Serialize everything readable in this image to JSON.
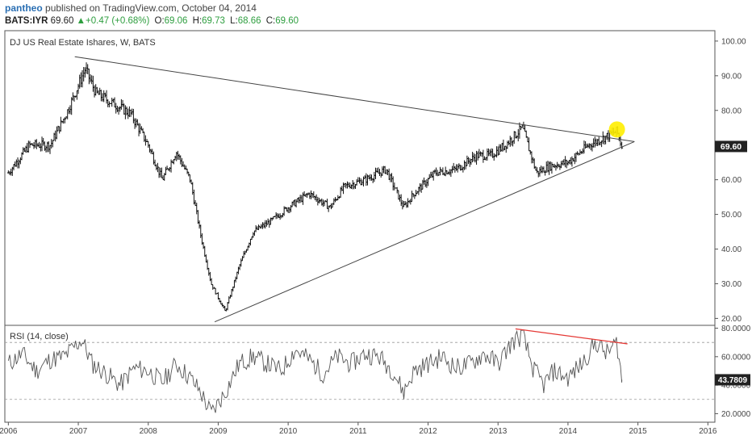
{
  "header": {
    "author": "pantheo",
    "published_text": "published on TradingView.com, October 04, 2014",
    "symbol": "BATS:IYR",
    "last": "69.60",
    "up_arrow": "▲",
    "change": "+0.47 (+0.68%)",
    "open_label": "O:",
    "open": "69.06",
    "high_label": "H:",
    "high": "69.73",
    "low_label": "L:",
    "low": "68.66",
    "close_label": "C:",
    "close": "69.60"
  },
  "chart_data": {
    "type": "line",
    "title": "DJ US Real Estate Ishares, W, BATS",
    "x_ticks": [
      "2006",
      "2007",
      "2008",
      "2009",
      "2010",
      "2011",
      "2012",
      "2013",
      "2014",
      "2015",
      "2016"
    ],
    "price_panel": {
      "series_type": "ohlc-bars-weekly",
      "y_ticks": [
        "20.00",
        "30.00",
        "40.00",
        "50.00",
        "60.00",
        "70.00",
        "80.00",
        "90.00",
        "100.00"
      ],
      "ylim": [
        18,
        103
      ],
      "last_price_label": "69.60",
      "last_price": 69.6,
      "x": [
        2006.0,
        2006.3,
        2006.6,
        2006.85,
        2007.1,
        2007.25,
        2007.5,
        2007.75,
        2008.0,
        2008.2,
        2008.4,
        2008.6,
        2008.75,
        2008.9,
        2009.1,
        2009.3,
        2009.5,
        2009.75,
        2010.0,
        2010.3,
        2010.6,
        2010.8,
        2011.1,
        2011.4,
        2011.65,
        2011.8,
        2012.1,
        2012.4,
        2012.7,
        2012.9,
        2013.1,
        2013.35,
        2013.55,
        2013.75,
        2014.0,
        2014.3,
        2014.5,
        2014.7,
        2014.77
      ],
      "close": [
        62,
        70,
        70,
        80,
        92,
        85,
        82,
        79,
        70,
        60,
        68,
        60,
        44,
        30,
        22,
        35,
        45,
        48,
        52,
        56,
        52,
        58,
        60,
        63,
        52,
        56,
        62,
        63,
        67,
        67,
        70,
        75,
        62,
        64,
        65,
        70,
        72,
        74,
        69.6
      ],
      "trendlines": [
        {
          "x": [
            2006.95,
            2014.95
          ],
          "y": [
            95.5,
            71
          ]
        },
        {
          "x": [
            2008.95,
            2014.95
          ],
          "y": [
            19,
            71
          ]
        }
      ],
      "highlight_marker": {
        "x": 2014.7,
        "y": 74.5,
        "color": "#ffee00"
      }
    },
    "rsi_panel": {
      "label": "RSI (14, close)",
      "y_ticks": [
        "20.0000",
        "40.0000",
        "60.0000",
        "80.0000"
      ],
      "ylim": [
        14,
        82
      ],
      "levels": [
        30,
        70
      ],
      "current_value_label": "43.7809",
      "current_value": 43.78,
      "x": [
        2006.0,
        2006.2,
        2006.4,
        2006.6,
        2006.8,
        2007.05,
        2007.2,
        2007.4,
        2007.6,
        2007.8,
        2008.0,
        2008.2,
        2008.4,
        2008.6,
        2008.75,
        2008.9,
        2009.1,
        2009.3,
        2009.5,
        2009.7,
        2009.9,
        2010.1,
        2010.3,
        2010.5,
        2010.7,
        2010.9,
        2011.1,
        2011.3,
        2011.5,
        2011.65,
        2011.8,
        2012.0,
        2012.2,
        2012.4,
        2012.6,
        2012.8,
        2013.0,
        2013.2,
        2013.35,
        2013.5,
        2013.65,
        2013.8,
        2014.0,
        2014.2,
        2014.4,
        2014.55,
        2014.7,
        2014.77
      ],
      "values": [
        55,
        62,
        50,
        58,
        60,
        72,
        55,
        48,
        40,
        52,
        50,
        42,
        55,
        45,
        35,
        20,
        35,
        55,
        60,
        55,
        50,
        65,
        58,
        48,
        60,
        55,
        62,
        60,
        50,
        35,
        50,
        55,
        60,
        52,
        55,
        62,
        55,
        70,
        75,
        52,
        40,
        50,
        45,
        55,
        70,
        62,
        70,
        43.78
      ],
      "divergence_line": {
        "x": [
          2013.25,
          2014.85
        ],
        "y": [
          79.5,
          69
        ],
        "color": "#e53935"
      }
    }
  }
}
